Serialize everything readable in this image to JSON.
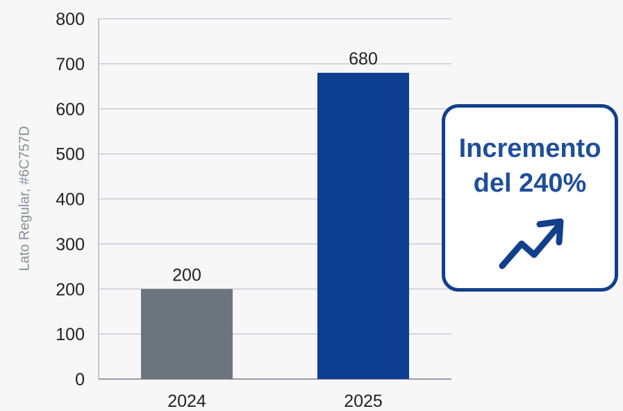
{
  "chart_data": {
    "type": "bar",
    "categories": [
      "2024",
      "2025"
    ],
    "values": [
      200,
      680
    ],
    "data_labels": [
      "200",
      "680"
    ],
    "ylabel": "Lato Regular, #6C757D",
    "ylim": [
      0,
      800
    ],
    "yticks": [
      0,
      100,
      200,
      300,
      400,
      500,
      600,
      700,
      800
    ],
    "bar_colors": [
      "#6c757d",
      "#0d3e8f"
    ],
    "grid": true
  },
  "callout": {
    "line1": "Incremento",
    "line2": "del 240%",
    "icon": "trend-up-arrow-icon",
    "border_color": "#123f8c",
    "text_color": "#1f4e9b"
  }
}
